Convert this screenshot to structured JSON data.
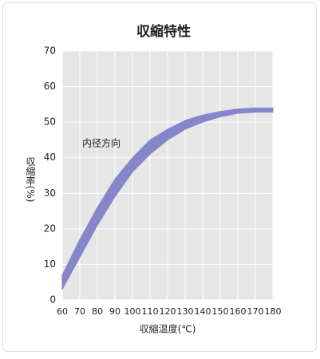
{
  "chart_data": {
    "type": "band",
    "title": "収縮特性",
    "x_label": "収縮温度(℃)",
    "y_label": "収縮率(%)",
    "annotation": "内径方向",
    "x": [
      60,
      70,
      80,
      90,
      100,
      110,
      120,
      130,
      140,
      150,
      160,
      170,
      180
    ],
    "upper": [
      7,
      17,
      26,
      34,
      40,
      45,
      48,
      50.5,
      52,
      53,
      53.7,
      54,
      54
    ],
    "lower": [
      3,
      12,
      21,
      29,
      36,
      41,
      45,
      48,
      50,
      51.5,
      52.5,
      52.8,
      52.8
    ],
    "color": "#8585c9",
    "xlim": [
      60,
      180
    ],
    "xticks": [
      60,
      70,
      80,
      90,
      100,
      110,
      120,
      130,
      140,
      150,
      160,
      170,
      180
    ],
    "ylim": [
      0,
      70
    ],
    "yticks": [
      0,
      10,
      20,
      30,
      40,
      50,
      60,
      70
    ],
    "grid": true
  }
}
